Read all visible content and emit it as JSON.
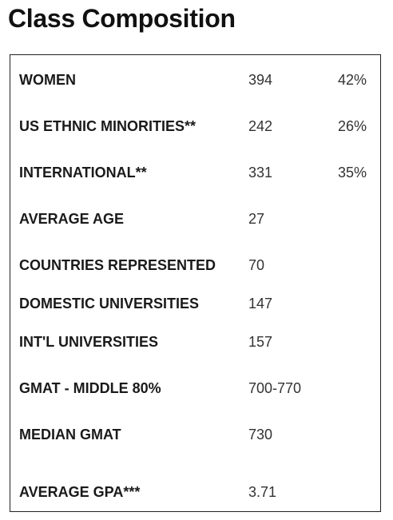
{
  "title": "Class Composition",
  "rows": [
    {
      "label": "WOMEN",
      "value": "394",
      "percent": "42%"
    },
    {
      "label": "US ETHNIC MINORITIES**",
      "value": "242",
      "percent": "26%"
    },
    {
      "label": "INTERNATIONAL**",
      "value": "331",
      "percent": "35%"
    },
    {
      "label": "AVERAGE AGE",
      "value": "27",
      "percent": ""
    },
    {
      "label": "COUNTRIES REPRESENTED",
      "value": "70",
      "percent": ""
    },
    {
      "label": "DOMESTIC UNIVERSITIES",
      "value": "147",
      "percent": ""
    },
    {
      "label": "INT'L UNIVERSITIES",
      "value": "157",
      "percent": ""
    },
    {
      "label": "GMAT - MIDDLE 80%",
      "value": "700-770",
      "percent": ""
    },
    {
      "label": "MEDIAN GMAT",
      "value": "730",
      "percent": ""
    },
    {
      "label": "AVERAGE GPA***",
      "value": "3.71",
      "percent": ""
    }
  ]
}
